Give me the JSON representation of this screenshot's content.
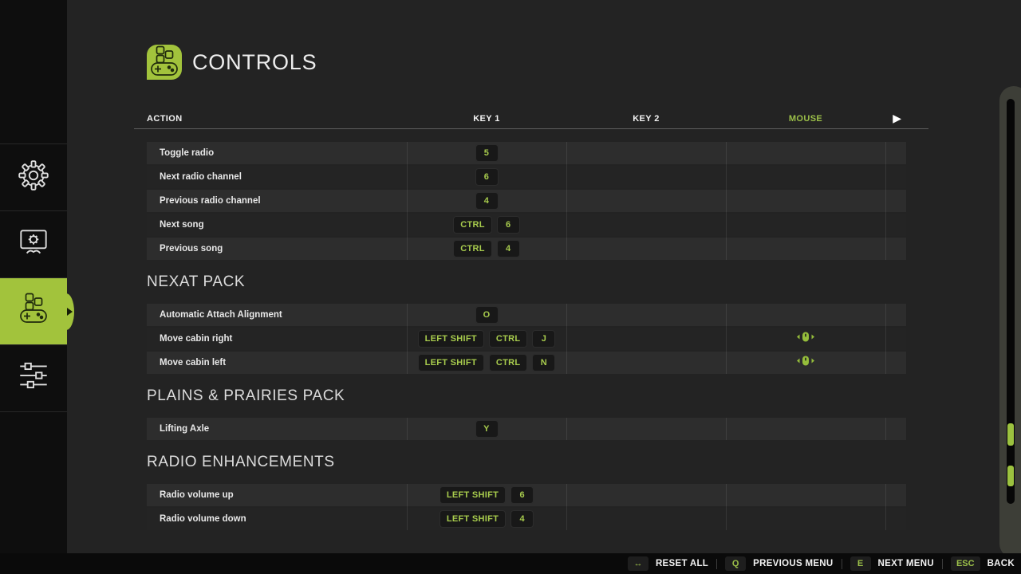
{
  "title": "CONTROLS",
  "colors": {
    "accent": "#a2c33c",
    "key_text": "#a8cc4d",
    "mouse_header": "#9cc049"
  },
  "sidebar": {
    "items": [
      {
        "name": "general-settings",
        "icon": "gear-icon",
        "selected": false
      },
      {
        "name": "display-settings",
        "icon": "display-settings-icon",
        "selected": false
      },
      {
        "name": "controls",
        "icon": "gamepad-icon",
        "selected": true
      },
      {
        "name": "advanced-settings",
        "icon": "sliders-icon",
        "selected": false
      }
    ]
  },
  "header_icon": "gamepad-icon",
  "table": {
    "columns": {
      "action": "ACTION",
      "key1": "KEY 1",
      "key2": "KEY 2",
      "mouse": "MOUSE"
    },
    "next_column_arrow": "▶",
    "groups": [
      {
        "heading": "",
        "rows": [
          {
            "action": "Toggle radio",
            "key1": [
              "5"
            ],
            "key2": [],
            "mouse": false
          },
          {
            "action": "Next radio channel",
            "key1": [
              "6"
            ],
            "key2": [],
            "mouse": false
          },
          {
            "action": "Previous radio channel",
            "key1": [
              "4"
            ],
            "key2": [],
            "mouse": false
          },
          {
            "action": "Next song",
            "key1": [
              "CTRL",
              "6"
            ],
            "key2": [],
            "mouse": false
          },
          {
            "action": "Previous song",
            "key1": [
              "CTRL",
              "4"
            ],
            "key2": [],
            "mouse": false
          }
        ]
      },
      {
        "heading": "NEXAT PACK",
        "rows": [
          {
            "action": "Automatic Attach Alignment",
            "key1": [
              "O"
            ],
            "key2": [],
            "mouse": false
          },
          {
            "action": "Move cabin right",
            "key1": [
              "LEFT SHIFT",
              "CTRL",
              "J"
            ],
            "key2": [],
            "mouse": true
          },
          {
            "action": "Move cabin left",
            "key1": [
              "LEFT SHIFT",
              "CTRL",
              "N"
            ],
            "key2": [],
            "mouse": true
          }
        ]
      },
      {
        "heading": "PLAINS & PRAIRIES PACK",
        "rows": [
          {
            "action": "Lifting Axle",
            "key1": [
              "Y"
            ],
            "key2": [],
            "mouse": false
          }
        ]
      },
      {
        "heading": "RADIO ENHANCEMENTS",
        "rows": [
          {
            "action": "Radio volume up",
            "key1": [
              "LEFT SHIFT",
              "6"
            ],
            "key2": [],
            "mouse": false
          },
          {
            "action": "Radio volume down",
            "key1": [
              "LEFT SHIFT",
              "4"
            ],
            "key2": [],
            "mouse": false
          }
        ]
      }
    ]
  },
  "footer": {
    "items": [
      {
        "key": "↔",
        "key_icon": "reset-key-icon",
        "label": "RESET ALL"
      },
      {
        "key": "Q",
        "key_icon": "q-key",
        "label": "PREVIOUS MENU"
      },
      {
        "key": "E",
        "key_icon": "e-key",
        "label": "NEXT MENU"
      },
      {
        "key": "ESC",
        "key_icon": "esc-key",
        "label": "BACK"
      }
    ]
  }
}
